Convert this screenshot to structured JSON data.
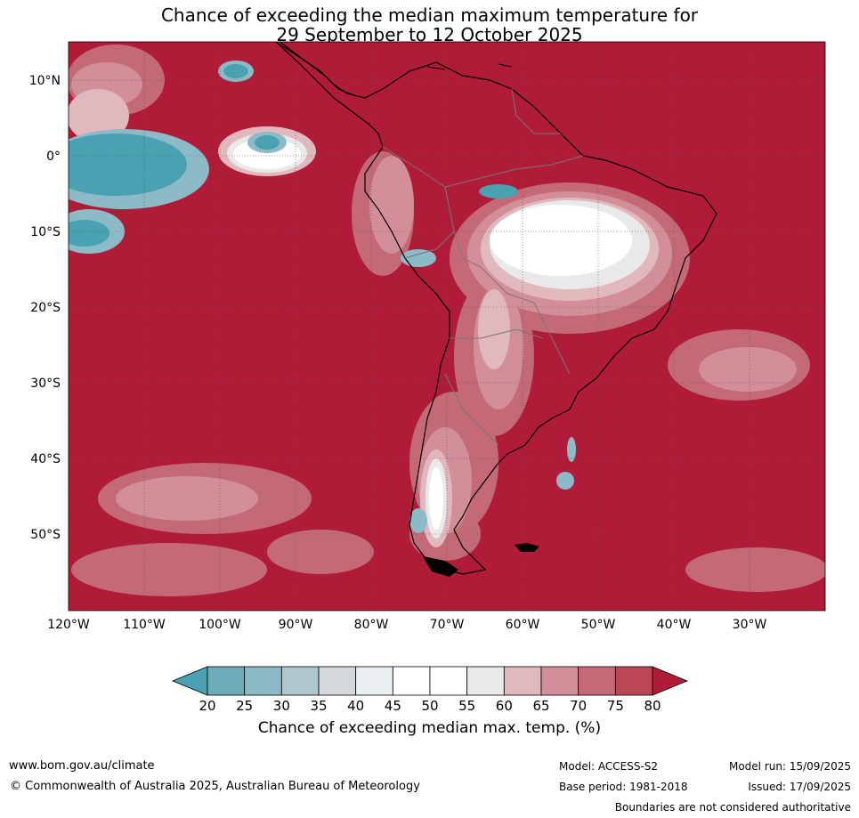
{
  "title": {
    "line1": "Chance of exceeding the median maximum temperature for",
    "line2": "29 September to 12 October 2025"
  },
  "map": {
    "lat_labels": [
      "10°N",
      "0°",
      "10°S",
      "20°S",
      "30°S",
      "40°S",
      "50°S"
    ],
    "lon_labels": [
      "120°W",
      "110°W",
      "100°W",
      "90°W",
      "80°W",
      "70°W",
      "60°W",
      "50°W",
      "40°W",
      "30°W"
    ],
    "background_color": "#b01c38"
  },
  "colorbar": {
    "ticks": [
      "20",
      "25",
      "30",
      "35",
      "40",
      "45",
      "50",
      "55",
      "60",
      "65",
      "70",
      "75",
      "80"
    ],
    "colors": [
      "#4aa1b2",
      "#6eabb9",
      "#8cbbc7",
      "#adc7cd",
      "#d4d8da",
      "#e9eff1",
      "#ffffff",
      "#ffffff",
      "#e9e9ea",
      "#e0b8be",
      "#d38f99",
      "#c46a77",
      "#bb4756",
      "#b01c38"
    ],
    "label": "Chance of exceeding median max. temp. (%)"
  },
  "footer": {
    "url": "www.bom.gov.au/climate",
    "copyright": "© Commonwealth of Australia 2025, Australian Bureau of Meteorology",
    "model": "Model: ACCESS-S2",
    "base_period": "Base period: 1981-2018",
    "model_run": "Model run: 15/09/2025",
    "issued": "Issued: 17/09/2025",
    "disclaimer": "Boundaries are not considered authoritative"
  }
}
